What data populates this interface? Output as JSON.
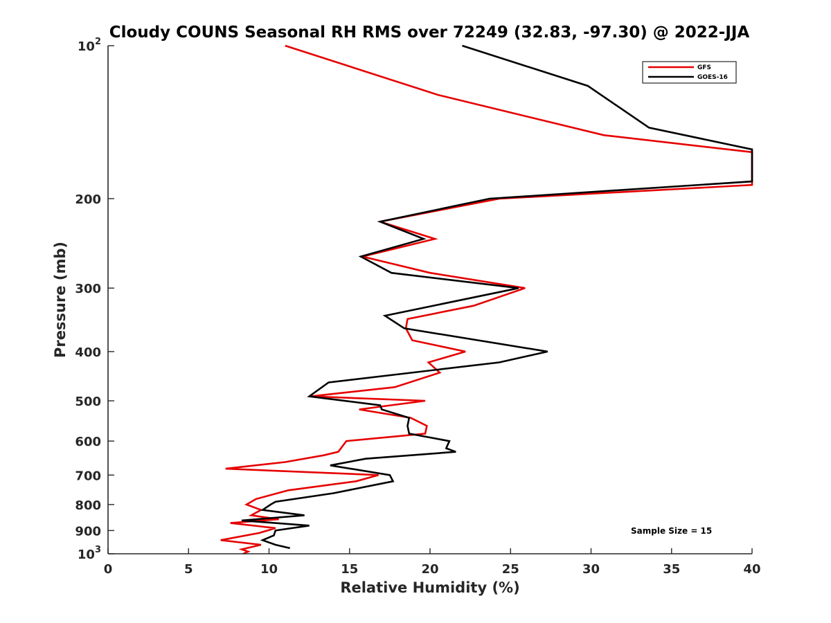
{
  "chart_data": {
    "type": "line",
    "title": "Cloudy COUNS Seasonal RH RMS over 72249 (32.83, -97.30) @ 2022-JJA",
    "xlabel": "Relative Humidity (%)",
    "ylabel": "Pressure (mb)",
    "xlim": [
      0,
      40
    ],
    "ylim": [
      100,
      1000
    ],
    "yscale": "log",
    "yreversed": true,
    "xticks": [
      0,
      5,
      10,
      15,
      20,
      25,
      30,
      35,
      40
    ],
    "xtick_labels": [
      "0",
      "5",
      "10",
      "15",
      "20",
      "25",
      "30",
      "35",
      "40"
    ],
    "yticks_labeled": [
      {
        "value": 100,
        "base": "10",
        "exp": "2"
      },
      {
        "value": 200,
        "base": "200",
        "exp": ""
      },
      {
        "value": 300,
        "base": "300",
        "exp": ""
      },
      {
        "value": 400,
        "base": "400",
        "exp": ""
      },
      {
        "value": 500,
        "base": "500",
        "exp": ""
      },
      {
        "value": 600,
        "base": "600",
        "exp": ""
      },
      {
        "value": 700,
        "base": "700",
        "exp": ""
      },
      {
        "value": 800,
        "base": "800",
        "exp": ""
      },
      {
        "value": 900,
        "base": "900",
        "exp": ""
      },
      {
        "value": 1000,
        "base": "10",
        "exp": "3"
      }
    ],
    "legend": {
      "position": "top-right"
    },
    "series": [
      {
        "name": "GFS",
        "color": "#e60000",
        "points": [
          [
            11.0,
            100
          ],
          [
            20.5,
            125
          ],
          [
            30.8,
            150
          ],
          [
            40.0,
            162
          ],
          [
            40.0,
            188
          ],
          [
            24.3,
            200
          ],
          [
            16.9,
            222
          ],
          [
            20.3,
            240
          ],
          [
            15.8,
            260
          ],
          [
            20.0,
            280
          ],
          [
            25.9,
            300
          ],
          [
            22.7,
            325
          ],
          [
            18.6,
            345
          ],
          [
            18.5,
            360
          ],
          [
            18.9,
            380
          ],
          [
            22.2,
            400
          ],
          [
            19.9,
            420
          ],
          [
            20.6,
            440
          ],
          [
            17.8,
            470
          ],
          [
            12.6,
            490
          ],
          [
            19.7,
            500
          ],
          [
            15.6,
            520
          ],
          [
            18.8,
            540
          ],
          [
            19.8,
            560
          ],
          [
            19.7,
            580
          ],
          [
            14.8,
            600
          ],
          [
            14.3,
            630
          ],
          [
            13.4,
            640
          ],
          [
            11.0,
            660
          ],
          [
            7.3,
            680
          ],
          [
            16.8,
            700
          ],
          [
            15.4,
            720
          ],
          [
            11.2,
            750
          ],
          [
            9.2,
            780
          ],
          [
            8.6,
            800
          ],
          [
            9.5,
            820
          ],
          [
            8.9,
            840
          ],
          [
            10.6,
            855
          ],
          [
            7.6,
            870
          ],
          [
            10.4,
            890
          ],
          [
            9.4,
            910
          ],
          [
            7.0,
            940
          ],
          [
            9.5,
            960
          ],
          [
            8.3,
            980
          ],
          [
            8.7,
            990
          ],
          [
            8.4,
            1000
          ]
        ]
      },
      {
        "name": "GOES-16",
        "color": "#000000",
        "points": [
          [
            22.0,
            100
          ],
          [
            29.8,
            120
          ],
          [
            33.6,
            145
          ],
          [
            40.0,
            160
          ],
          [
            40.0,
            185
          ],
          [
            23.7,
            200
          ],
          [
            16.9,
            222
          ],
          [
            19.6,
            240
          ],
          [
            15.7,
            260
          ],
          [
            17.6,
            280
          ],
          [
            25.5,
            300
          ],
          [
            17.2,
            340
          ],
          [
            18.4,
            360
          ],
          [
            27.3,
            400
          ],
          [
            24.3,
            420
          ],
          [
            13.7,
            460
          ],
          [
            12.5,
            490
          ],
          [
            16.9,
            510
          ],
          [
            17.0,
            520
          ],
          [
            18.7,
            540
          ],
          [
            18.6,
            560
          ],
          [
            18.7,
            580
          ],
          [
            21.2,
            600
          ],
          [
            21.0,
            620
          ],
          [
            21.6,
            630
          ],
          [
            16.0,
            650
          ],
          [
            13.8,
            670
          ],
          [
            17.5,
            700
          ],
          [
            17.7,
            720
          ],
          [
            14.0,
            760
          ],
          [
            10.4,
            790
          ],
          [
            10.1,
            800
          ],
          [
            9.6,
            820
          ],
          [
            12.2,
            840
          ],
          [
            8.3,
            860
          ],
          [
            12.5,
            880
          ],
          [
            10.4,
            900
          ],
          [
            10.3,
            920
          ],
          [
            9.6,
            940
          ],
          [
            10.4,
            960
          ],
          [
            11.3,
            975
          ]
        ]
      }
    ],
    "annotations": [
      "Sample Size = 15"
    ]
  }
}
